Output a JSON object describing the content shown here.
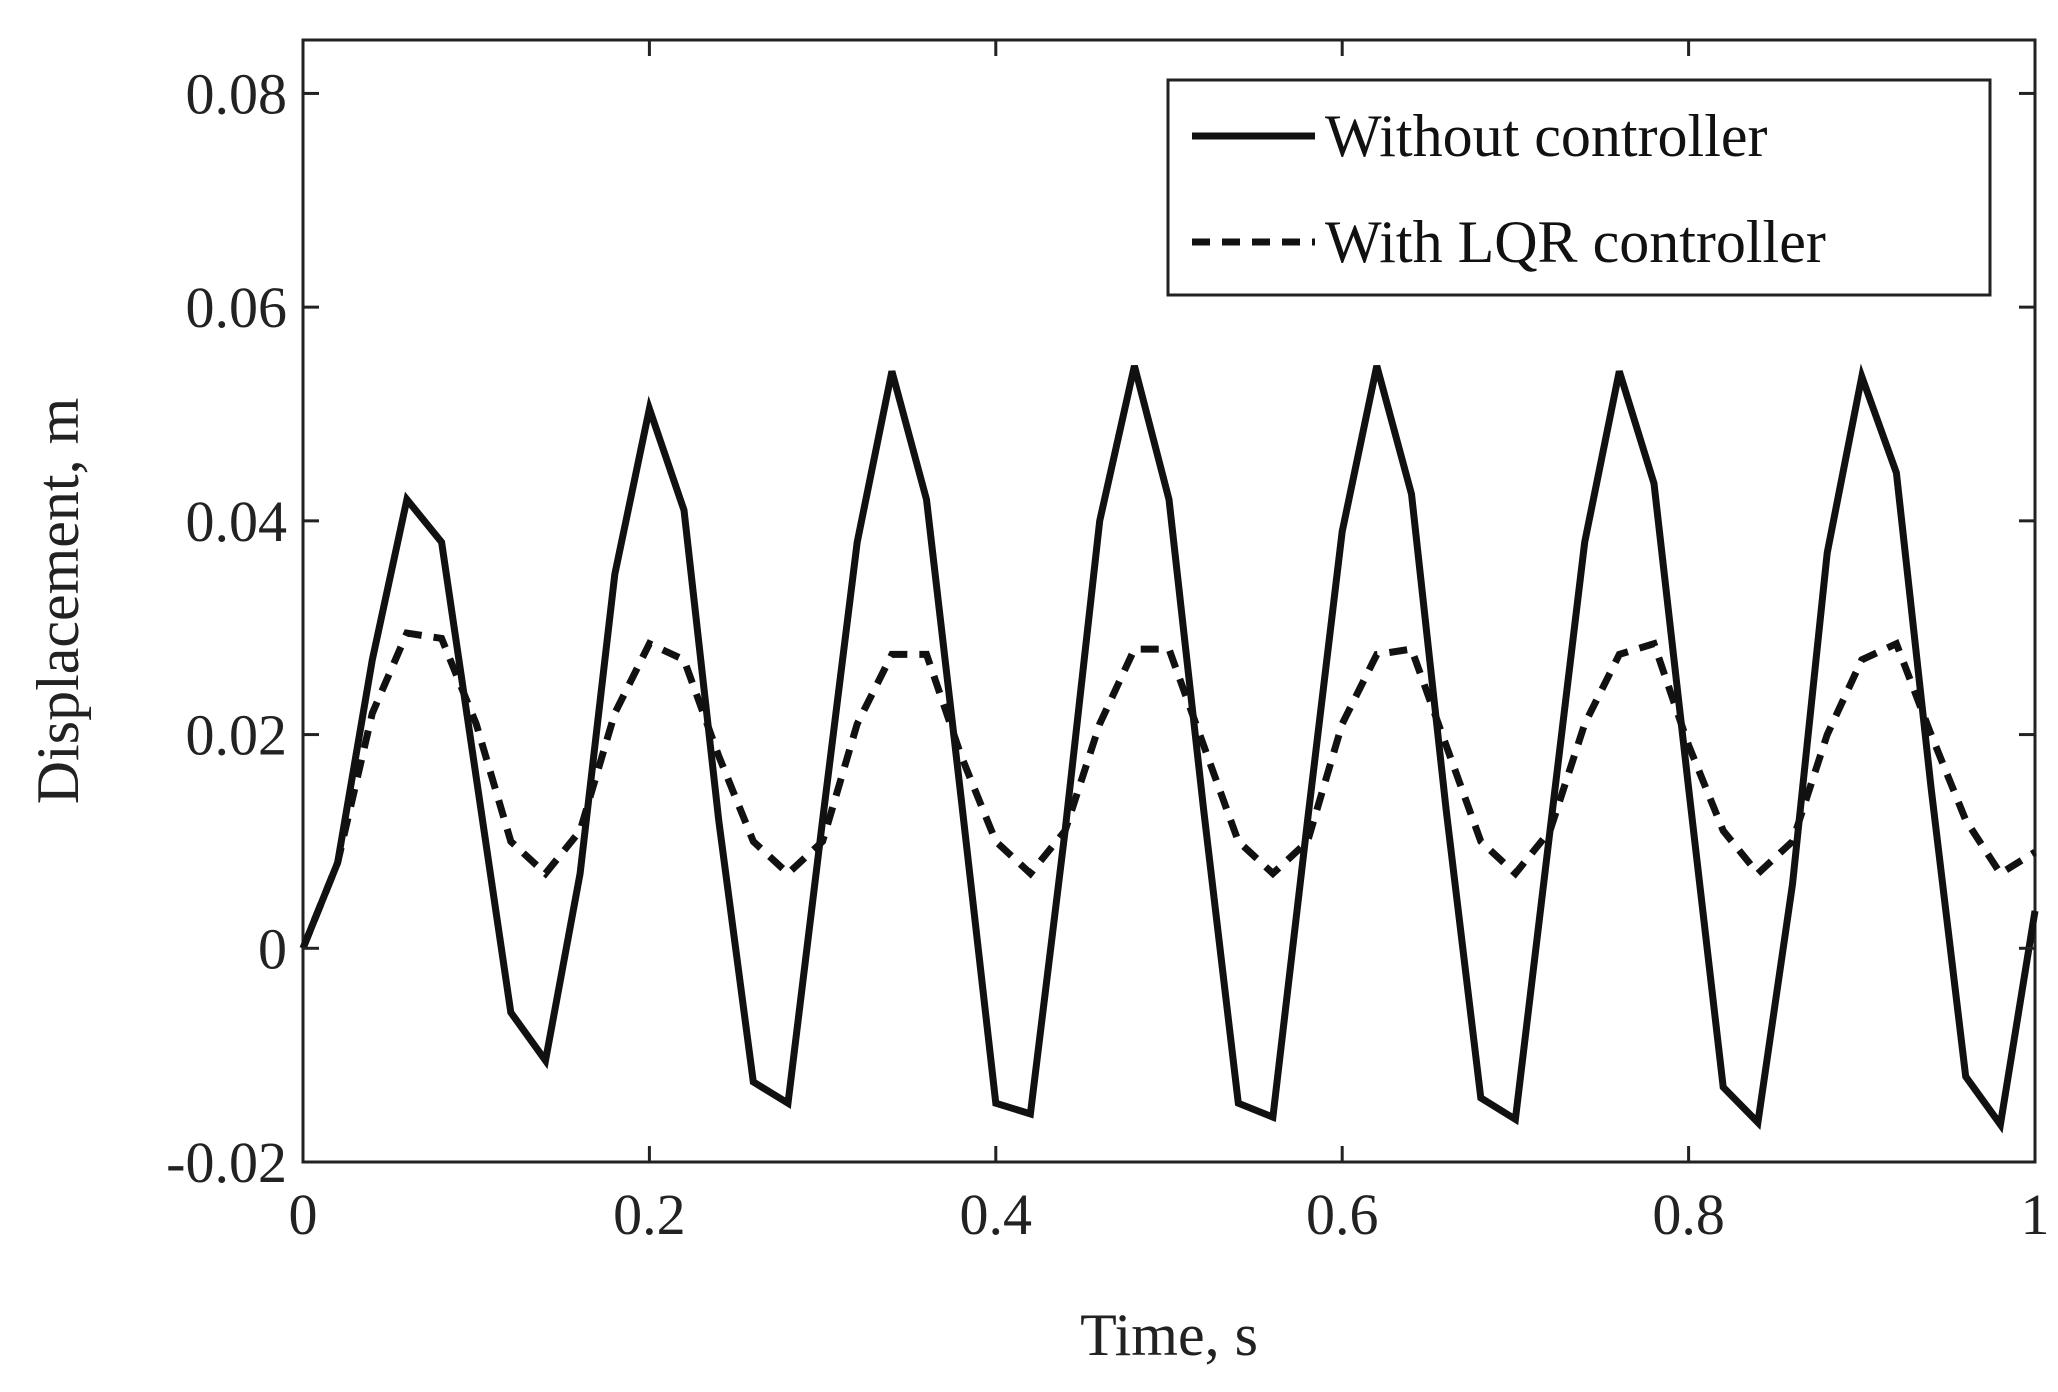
{
  "chart_data": {
    "type": "line",
    "title": "",
    "xlabel": "Time, s",
    "ylabel": "Displacement, m",
    "xlim": [
      0,
      1
    ],
    "ylim": [
      -0.02,
      0.085
    ],
    "grid": false,
    "legend_position": "top-right",
    "x_ticks": [
      0,
      0.2,
      0.4,
      0.6,
      0.8,
      1
    ],
    "x_tick_labels": [
      "0",
      "0.2",
      "0.4",
      "0.6",
      "0.8",
      "1"
    ],
    "y_ticks": [
      -0.02,
      0,
      0.02,
      0.04,
      0.06,
      0.08
    ],
    "y_tick_labels": [
      "-0.02",
      "0",
      "0.02",
      "0.04",
      "0.06",
      "0.08"
    ],
    "series": [
      {
        "name": "Without controller",
        "style": "solid",
        "color": "#111111",
        "x": [
          0,
          0.02,
          0.04,
          0.06,
          0.08,
          0.1,
          0.12,
          0.14,
          0.16,
          0.18,
          0.2,
          0.22,
          0.24,
          0.26,
          0.28,
          0.3,
          0.32,
          0.34,
          0.36,
          0.38,
          0.4,
          0.42,
          0.44,
          0.46,
          0.48,
          0.5,
          0.52,
          0.54,
          0.56,
          0.58,
          0.6,
          0.62,
          0.64,
          0.66,
          0.68,
          0.7,
          0.72,
          0.74,
          0.76,
          0.78,
          0.8,
          0.82,
          0.84,
          0.86,
          0.88,
          0.9,
          0.92,
          0.94,
          0.96,
          0.98,
          1.0
        ],
        "y": [
          0,
          0.008,
          0.027,
          0.042,
          0.038,
          0.016,
          -0.006,
          -0.0105,
          0.007,
          0.035,
          0.0505,
          0.041,
          0.012,
          -0.0125,
          -0.0145,
          0.012,
          0.038,
          0.054,
          0.042,
          0.014,
          -0.0145,
          -0.0155,
          0.011,
          0.04,
          0.0545,
          0.042,
          0.013,
          -0.0145,
          -0.0158,
          0.012,
          0.039,
          0.0545,
          0.0425,
          0.013,
          -0.014,
          -0.016,
          0.011,
          0.038,
          0.054,
          0.0435,
          0.015,
          -0.013,
          -0.0163,
          0.006,
          0.037,
          0.0535,
          0.0445,
          0.015,
          -0.012,
          -0.0165,
          0.0035
        ]
      },
      {
        "name": "With LQR controller",
        "style": "dashed",
        "color": "#111111",
        "x": [
          0,
          0.02,
          0.04,
          0.06,
          0.08,
          0.1,
          0.12,
          0.14,
          0.16,
          0.18,
          0.2,
          0.22,
          0.24,
          0.26,
          0.28,
          0.3,
          0.32,
          0.34,
          0.36,
          0.38,
          0.4,
          0.42,
          0.44,
          0.46,
          0.48,
          0.5,
          0.52,
          0.54,
          0.56,
          0.58,
          0.6,
          0.62,
          0.64,
          0.66,
          0.68,
          0.7,
          0.72,
          0.74,
          0.76,
          0.78,
          0.8,
          0.82,
          0.84,
          0.86,
          0.88,
          0.9,
          0.92,
          0.94,
          0.96,
          0.98,
          1.0
        ],
        "y": [
          0,
          0.008,
          0.022,
          0.0295,
          0.029,
          0.021,
          0.01,
          0.007,
          0.011,
          0.022,
          0.0285,
          0.027,
          0.018,
          0.01,
          0.007,
          0.01,
          0.021,
          0.0275,
          0.0275,
          0.018,
          0.01,
          0.007,
          0.011,
          0.021,
          0.028,
          0.028,
          0.019,
          0.01,
          0.007,
          0.01,
          0.021,
          0.0275,
          0.028,
          0.019,
          0.01,
          0.007,
          0.011,
          0.021,
          0.0275,
          0.0285,
          0.019,
          0.011,
          0.007,
          0.01,
          0.02,
          0.027,
          0.0285,
          0.02,
          0.012,
          0.007,
          0.009
        ]
      }
    ]
  }
}
